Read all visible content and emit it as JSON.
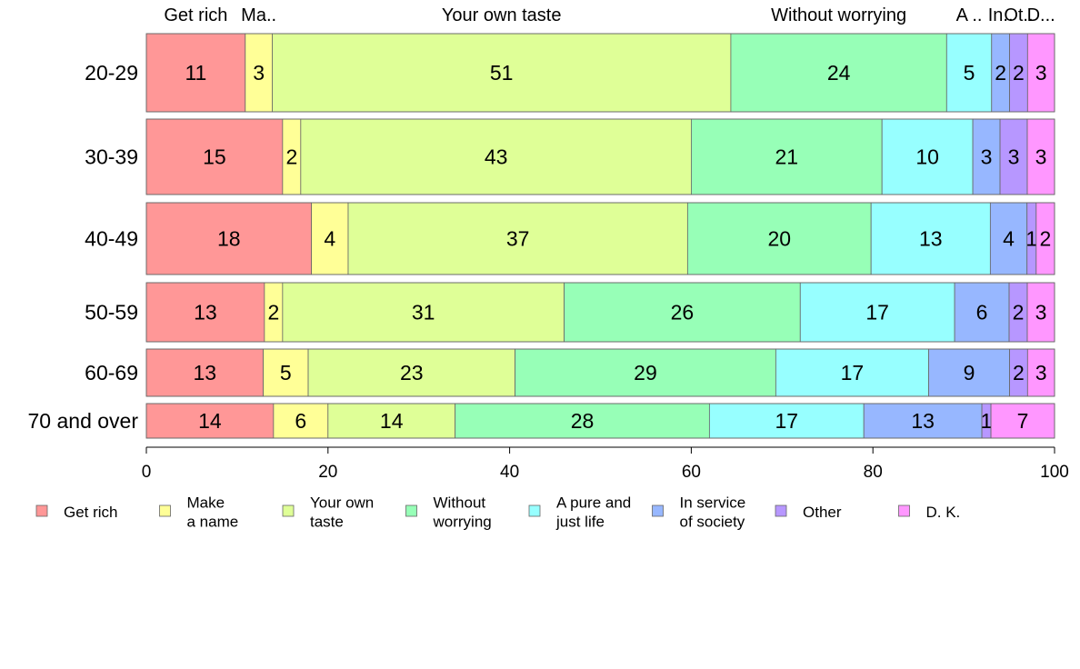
{
  "chart_data": {
    "type": "bar",
    "orientation": "horizontal",
    "stacked": true,
    "categories": [
      "20-29",
      "30-39",
      "40-49",
      "50-59",
      "60-69",
      "70 and over"
    ],
    "series": [
      {
        "name": "Get rich",
        "legend_lines": [
          "Get rich"
        ],
        "top_label": "Get rich",
        "color": "#ff9797",
        "values": [
          11,
          15,
          18,
          13,
          13,
          14
        ]
      },
      {
        "name": "Make a name",
        "legend_lines": [
          "Make",
          "a name"
        ],
        "top_label": "Ma..",
        "color": "#ffff97",
        "values": [
          3,
          2,
          4,
          2,
          5,
          6
        ]
      },
      {
        "name": "Your own taste",
        "legend_lines": [
          "Your own",
          "taste"
        ],
        "top_label": "Your own taste",
        "color": "#dfff97",
        "values": [
          51,
          43,
          37,
          31,
          23,
          14
        ]
      },
      {
        "name": "Without worrying",
        "legend_lines": [
          "Without",
          "worrying"
        ],
        "top_label": "Without worrying",
        "color": "#97ffb7",
        "values": [
          24,
          21,
          20,
          26,
          29,
          28
        ]
      },
      {
        "name": "A pure and just life",
        "legend_lines": [
          "A pure and",
          "just life"
        ],
        "top_label": "A ..",
        "color": "#97ffff",
        "values": [
          5,
          10,
          13,
          17,
          17,
          17
        ]
      },
      {
        "name": "In service of society",
        "legend_lines": [
          "In service",
          "of society"
        ],
        "top_label": "In..",
        "color": "#97b7ff",
        "values": [
          2,
          3,
          4,
          6,
          9,
          13
        ]
      },
      {
        "name": "Other",
        "legend_lines": [
          "Other"
        ],
        "top_label": "Ot..",
        "color": "#b797ff",
        "values": [
          2,
          3,
          1,
          2,
          2,
          1
        ]
      },
      {
        "name": "D. K.",
        "legend_lines": [
          "D. K."
        ],
        "top_label": "D...",
        "color": "#ff97ff",
        "values": [
          3,
          3,
          2,
          3,
          3,
          7
        ]
      }
    ],
    "xlim": [
      0,
      100
    ],
    "xticks": [
      "0",
      "20",
      "40",
      "60",
      "80",
      "100"
    ],
    "xlabel": "",
    "ylabel": "",
    "title": "",
    "legend_position": "bottom",
    "grid": false
  }
}
